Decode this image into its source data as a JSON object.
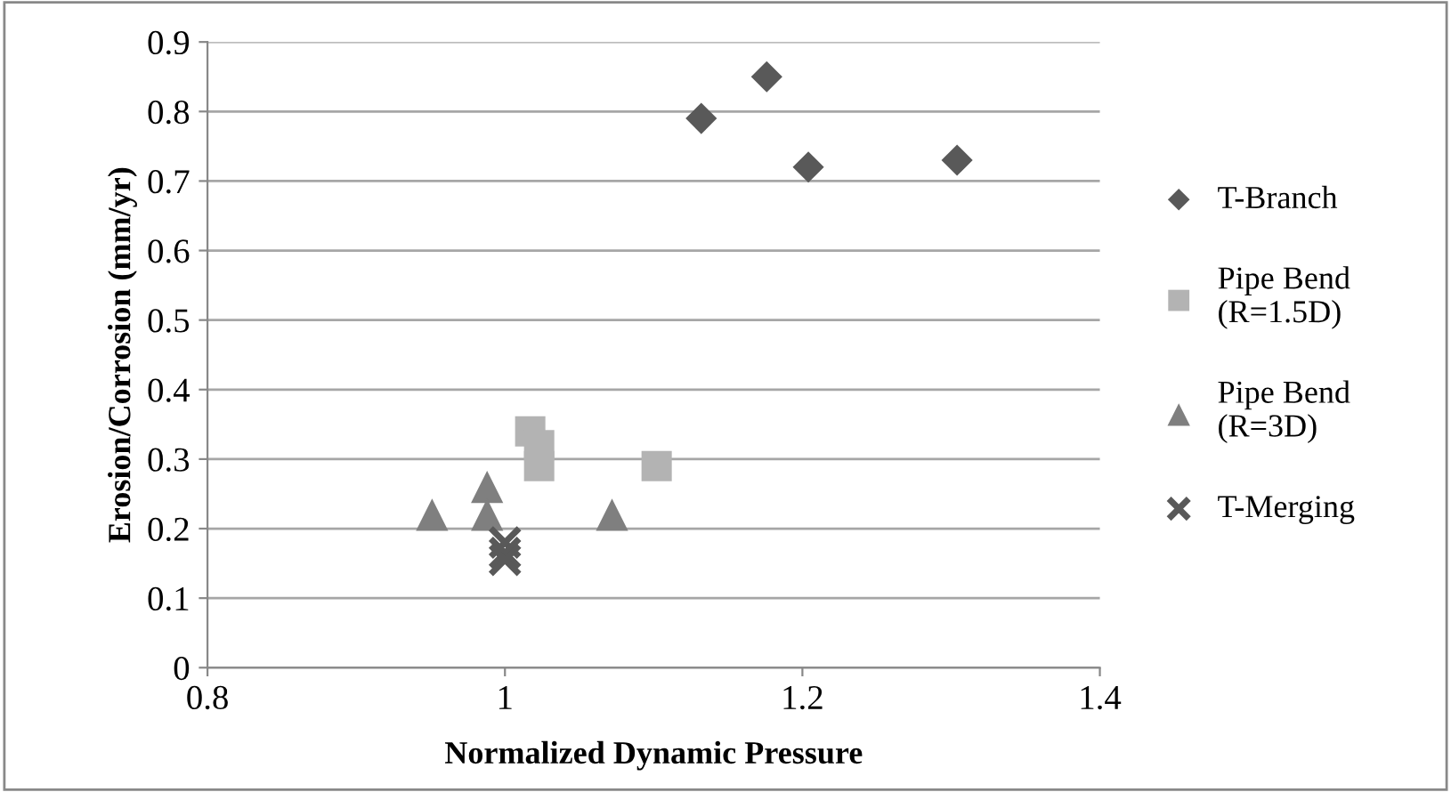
{
  "chart_data": {
    "type": "scatter",
    "xlabel": "Normalized Dynamic Pressure",
    "ylabel": "Erosion/Corrosion (mm/yr)",
    "xlim": [
      0.8,
      1.4
    ],
    "xticks": [
      0.8,
      1,
      1.2,
      1.4
    ],
    "ylim": [
      0,
      0.9
    ],
    "yticks": [
      0,
      0.1,
      0.2,
      0.3,
      0.4,
      0.5,
      0.6,
      0.7,
      0.8,
      0.9
    ],
    "grid": "y",
    "legend": "right",
    "series": [
      {
        "name": "T-Branch",
        "color": "#595959",
        "marker": "diamond",
        "x": [
          1.132,
          1.176,
          1.204,
          1.304
        ],
        "values": [
          0.79,
          0.85,
          0.72,
          0.73
        ]
      },
      {
        "name": "Pipe Bend\n(R=1.5D)",
        "color": "#b3b3b3",
        "marker": "square",
        "x": [
          1.017,
          1.023,
          1.023,
          1.102
        ],
        "values": [
          0.34,
          0.32,
          0.29,
          0.29
        ]
      },
      {
        "name": "Pipe Bend\n(R=3D)",
        "color": "#7f7f7f",
        "marker": "triangle",
        "x": [
          0.951,
          0.988,
          0.988,
          1.072
        ],
        "values": [
          0.22,
          0.26,
          0.22,
          0.22
        ]
      },
      {
        "name": "T-Merging",
        "color": "#595959",
        "marker": "cross",
        "x": [
          1.0,
          1.0,
          1.0
        ],
        "values": [
          0.18,
          0.165,
          0.155
        ]
      }
    ]
  }
}
